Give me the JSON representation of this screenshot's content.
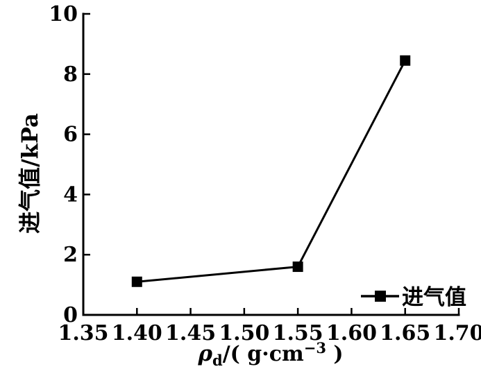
{
  "chart_data": {
    "type": "line",
    "title": "",
    "ylabel": "进气值/kPa",
    "xlabel_plain": "ρd/( g·cm−3 )",
    "xlabel_parts": {
      "symbol": "ρ",
      "subscript": "d",
      "mid": "/( g·cm",
      "superscript": "−3",
      "end": " )"
    },
    "x_tick_labels": [
      "1.35",
      "1.40",
      "1.45",
      "1.50",
      "1.55",
      "1.60",
      "1.65",
      "1.70"
    ],
    "y_tick_labels": [
      "0",
      "2",
      "4",
      "6",
      "8",
      "10"
    ],
    "xlim": [
      1.35,
      1.7
    ],
    "ylim": [
      0,
      10
    ],
    "grid": false,
    "legend": {
      "label": "进气值",
      "position": "inside-bottom-right"
    },
    "series": [
      {
        "name": "进气值",
        "marker": "filled-square",
        "color": "#000000",
        "points": [
          {
            "x": 1.4,
            "y": 1.1
          },
          {
            "x": 1.55,
            "y": 1.6
          },
          {
            "x": 1.65,
            "y": 8.45
          }
        ]
      }
    ]
  },
  "colors": {
    "background": "#ffffff",
    "axis": "#000000",
    "text": "#000000",
    "series": "#000000"
  }
}
